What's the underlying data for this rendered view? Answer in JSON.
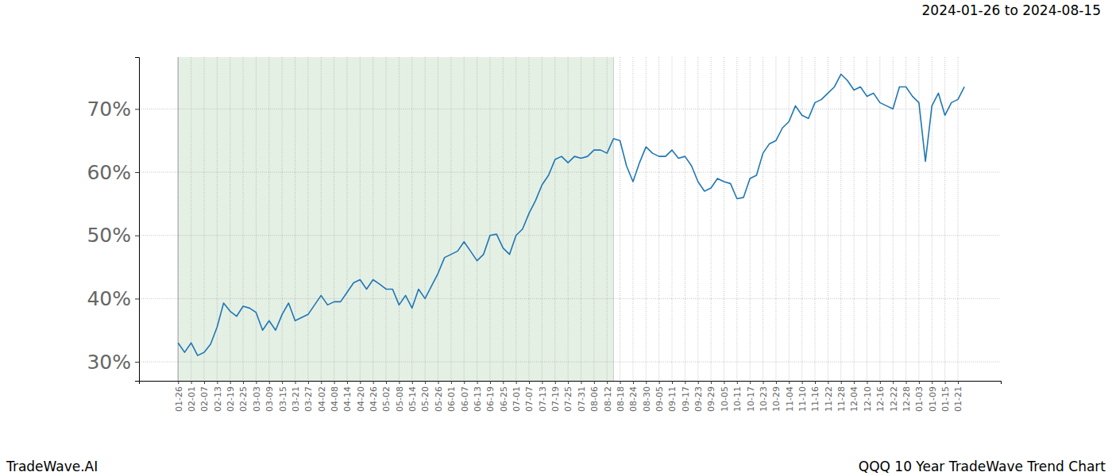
{
  "chart_data": {
    "type": "line",
    "title": "2024-01-26 to 2024-08-15",
    "footer_left": "TradeWave.AI",
    "footer_right": "QQQ 10 Year TradeWave Trend Chart",
    "categories": [
      "01-26",
      null,
      "02-01",
      null,
      "02-07",
      null,
      "02-13",
      null,
      "02-19",
      null,
      "02-25",
      null,
      "03-03",
      null,
      "03-09",
      null,
      "03-15",
      null,
      "03-21",
      null,
      "03-27",
      null,
      "04-02",
      null,
      "04-08",
      null,
      "04-14",
      null,
      "04-20",
      null,
      "04-26",
      null,
      "05-02",
      null,
      "05-08",
      null,
      "05-14",
      null,
      "05-20",
      null,
      "05-26",
      null,
      "06-01",
      null,
      "06-07",
      null,
      "06-13",
      null,
      "06-19",
      null,
      "06-25",
      null,
      "07-01",
      null,
      "07-07",
      null,
      "07-13",
      null,
      "07-19",
      null,
      "07-25",
      null,
      "07-31",
      null,
      "08-06",
      null,
      "08-12",
      null,
      "08-18",
      null,
      "08-24",
      null,
      "08-30",
      null,
      "09-05",
      null,
      "09-11",
      null,
      "09-17",
      null,
      "09-23",
      null,
      "09-29",
      null,
      "10-05",
      null,
      "10-11",
      null,
      "10-17",
      null,
      "10-23",
      null,
      "10-29",
      null,
      "11-04",
      null,
      "11-10",
      null,
      "11-16",
      null,
      "11-22",
      null,
      "11-28",
      null,
      "12-04",
      null,
      "12-10",
      null,
      "12-16",
      null,
      "12-22",
      null,
      "12-28",
      null,
      "01-03",
      null,
      "01-09",
      null,
      "01-15",
      null,
      "01-21",
      null
    ],
    "values": [
      33,
      31.5,
      33,
      31,
      31.5,
      32.8,
      35.5,
      39.3,
      38,
      37.2,
      38.8,
      38.5,
      37.8,
      35,
      36.5,
      35,
      37.5,
      39.3,
      36.5,
      37,
      37.5,
      39,
      40.5,
      39,
      39.5,
      39.5,
      41,
      42.5,
      43,
      41.5,
      43,
      42.3,
      41.5,
      41.5,
      39,
      40.5,
      38.5,
      41.5,
      40,
      42,
      44,
      46.5,
      47,
      47.5,
      49,
      47.5,
      46,
      47,
      50,
      50.2,
      48,
      47,
      50,
      51,
      53.5,
      55.5,
      58,
      59.5,
      62,
      62.5,
      61.5,
      62.5,
      62.2,
      62.5,
      63.5,
      63.5,
      63,
      65.3,
      65,
      61,
      58.5,
      61.5,
      64,
      63,
      62.5,
      62.5,
      63.5,
      62.2,
      62.5,
      61,
      58.5,
      57,
      57.5,
      59,
      58.5,
      58.2,
      55.8,
      56,
      59,
      59.5,
      63,
      64.5,
      65,
      67,
      68,
      70.5,
      69,
      68.5,
      71,
      71.5,
      72.5,
      73.5,
      75.5,
      74.5,
      73,
      73.5,
      72,
      72.5,
      71,
      70.5,
      70,
      73.5,
      73.5,
      72,
      71,
      61.7,
      70.5,
      72.5,
      69,
      71,
      71.5,
      73.5
    ],
    "color": "#1f77b4",
    "highlight": [
      0,
      67
    ],
    "ylim": [
      27,
      78.2
    ],
    "yticks": [
      {
        "value": 30,
        "label": "30%"
      },
      {
        "value": 40,
        "label": "40%"
      },
      {
        "value": 50,
        "label": "50%"
      },
      {
        "value": 60,
        "label": "60%"
      },
      {
        "value": 70,
        "label": "70%"
      }
    ],
    "grid": true
  }
}
